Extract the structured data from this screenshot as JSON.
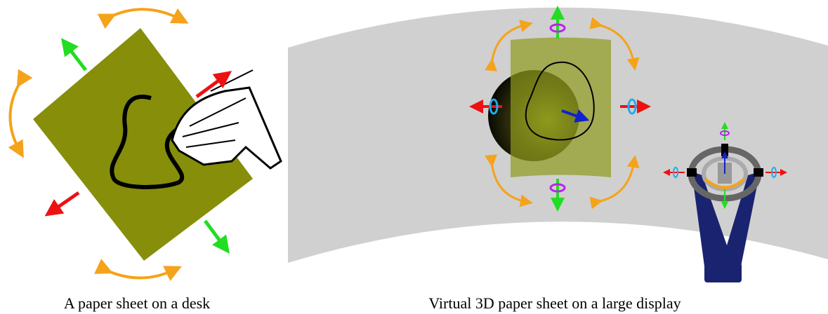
{
  "captions": {
    "left": "A paper sheet on a desk",
    "right": "Virtual 3D paper sheet on a large display"
  }
}
